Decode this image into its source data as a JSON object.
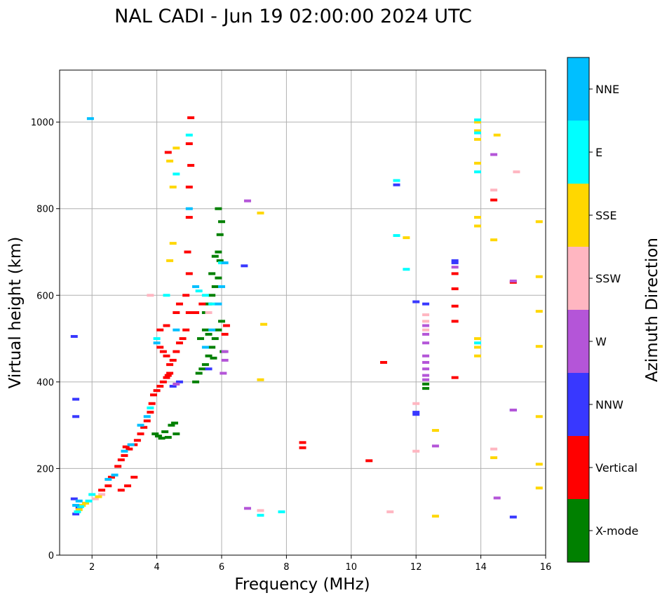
{
  "chart_data": {
    "type": "scatter",
    "title": "NAL CADI - Jun 19 02:00:00 2024 UTC",
    "xlabel": "Frequency (MHz)",
    "ylabel": "Virtual height (km)",
    "xlim": [
      1.0,
      16.0
    ],
    "ylim": [
      0,
      1120
    ],
    "xticks": [
      2,
      4,
      6,
      8,
      10,
      12,
      14,
      16
    ],
    "yticks": [
      0,
      200,
      400,
      600,
      800,
      1000
    ],
    "grid": true,
    "colorbar": {
      "label": "Azimuth Direction",
      "categories": [
        {
          "label": "X-mode",
          "color": "#008000"
        },
        {
          "label": "Vertical",
          "color": "#ff0000"
        },
        {
          "label": "NNW",
          "color": "#3838ff"
        },
        {
          "label": "W",
          "color": "#b455d8"
        },
        {
          "label": "SSW",
          "color": "#ffb6c1"
        },
        {
          "label": "SSE",
          "color": "#ffd700"
        },
        {
          "label": "E",
          "color": "#00ffff"
        },
        {
          "label": "NNE",
          "color": "#00bfff"
        }
      ]
    },
    "series": [
      {
        "name": "X-mode",
        "points": [
          [
            3.95,
            280
          ],
          [
            4.05,
            275
          ],
          [
            4.15,
            270
          ],
          [
            4.25,
            285
          ],
          [
            4.35,
            272
          ],
          [
            4.45,
            300
          ],
          [
            4.55,
            305
          ],
          [
            4.6,
            280
          ],
          [
            5.2,
            400
          ],
          [
            5.3,
            420
          ],
          [
            5.4,
            430
          ],
          [
            5.5,
            440
          ],
          [
            5.6,
            460
          ],
          [
            5.7,
            480
          ],
          [
            5.8,
            500
          ],
          [
            5.9,
            520
          ],
          [
            6.0,
            540
          ],
          [
            5.5,
            560
          ],
          [
            5.6,
            580
          ],
          [
            5.7,
            600
          ],
          [
            5.8,
            620
          ],
          [
            5.9,
            640
          ],
          [
            5.95,
            680
          ],
          [
            5.9,
            700
          ],
          [
            5.95,
            740
          ],
          [
            6.0,
            770
          ],
          [
            5.9,
            800
          ],
          [
            5.7,
            650
          ],
          [
            5.8,
            690
          ],
          [
            5.5,
            520
          ],
          [
            5.35,
            500
          ],
          [
            5.6,
            510
          ],
          [
            5.75,
            455
          ],
          [
            6.05,
            470
          ],
          [
            12.3,
            385
          ],
          [
            12.3,
            395
          ]
        ]
      },
      {
        "name": "Vertical",
        "points": [
          [
            2.3,
            150
          ],
          [
            2.5,
            160
          ],
          [
            2.6,
            180
          ],
          [
            2.8,
            205
          ],
          [
            2.9,
            220
          ],
          [
            3.0,
            230
          ],
          [
            3.05,
            250
          ],
          [
            3.15,
            245
          ],
          [
            3.3,
            255
          ],
          [
            3.4,
            265
          ],
          [
            3.5,
            280
          ],
          [
            3.6,
            295
          ],
          [
            3.7,
            310
          ],
          [
            3.8,
            330
          ],
          [
            3.85,
            350
          ],
          [
            3.9,
            370
          ],
          [
            4.0,
            380
          ],
          [
            4.1,
            390
          ],
          [
            4.2,
            400
          ],
          [
            4.3,
            410
          ],
          [
            4.35,
            415
          ],
          [
            4.4,
            420
          ],
          [
            4.5,
            450
          ],
          [
            4.6,
            470
          ],
          [
            4.7,
            490
          ],
          [
            4.8,
            500
          ],
          [
            4.9,
            520
          ],
          [
            5.0,
            560
          ],
          [
            4.9,
            600
          ],
          [
            5.0,
            650
          ],
          [
            4.95,
            700
          ],
          [
            5.0,
            780
          ],
          [
            5.0,
            850
          ],
          [
            5.05,
            900
          ],
          [
            5.0,
            950
          ],
          [
            5.05,
            1010
          ],
          [
            4.1,
            480
          ],
          [
            4.2,
            470
          ],
          [
            4.3,
            460
          ],
          [
            4.4,
            440
          ],
          [
            4.1,
            520
          ],
          [
            4.3,
            530
          ],
          [
            4.6,
            560
          ],
          [
            4.7,
            580
          ],
          [
            5.2,
            560
          ],
          [
            5.4,
            580
          ],
          [
            6.1,
            510
          ],
          [
            6.15,
            530
          ],
          [
            4.35,
            930
          ],
          [
            2.9,
            150
          ],
          [
            3.1,
            160
          ],
          [
            3.3,
            180
          ],
          [
            13.2,
            410
          ],
          [
            13.2,
            540
          ],
          [
            13.2,
            575
          ],
          [
            13.2,
            615
          ],
          [
            13.2,
            650
          ],
          [
            11.0,
            445
          ],
          [
            8.5,
            260
          ],
          [
            8.5,
            248
          ],
          [
            10.55,
            218
          ],
          [
            14.4,
            820
          ],
          [
            15.0,
            630
          ]
        ]
      },
      {
        "name": "NNW",
        "points": [
          [
            1.5,
            95
          ],
          [
            1.6,
            110
          ],
          [
            1.45,
            130
          ],
          [
            1.5,
            320
          ],
          [
            1.5,
            360
          ],
          [
            1.45,
            505
          ],
          [
            4.5,
            390
          ],
          [
            4.7,
            400
          ],
          [
            5.6,
            430
          ],
          [
            12.0,
            330
          ],
          [
            12.0,
            325
          ],
          [
            12.3,
            580
          ],
          [
            13.2,
            675
          ],
          [
            13.2,
            680
          ],
          [
            15.0,
            88
          ],
          [
            15.0,
            335
          ],
          [
            11.4,
            855
          ],
          [
            6.7,
            668
          ],
          [
            12.0,
            585
          ]
        ]
      },
      {
        "name": "W",
        "points": [
          [
            4.6,
            395
          ],
          [
            6.05,
            420
          ],
          [
            6.1,
            450
          ],
          [
            6.1,
            470
          ],
          [
            12.3,
            405
          ],
          [
            12.3,
            415
          ],
          [
            12.3,
            430
          ],
          [
            12.3,
            445
          ],
          [
            12.3,
            460
          ],
          [
            12.3,
            490
          ],
          [
            12.3,
            510
          ],
          [
            12.3,
            530
          ],
          [
            14.4,
            925
          ],
          [
            14.5,
            132
          ],
          [
            15.0,
            335
          ],
          [
            12.6,
            252
          ],
          [
            6.8,
            108
          ],
          [
            13.2,
            665
          ],
          [
            15.0,
            633
          ],
          [
            6.8,
            818
          ]
        ]
      },
      {
        "name": "SSW",
        "points": [
          [
            2.1,
            130
          ],
          [
            2.3,
            140
          ],
          [
            3.8,
            600
          ],
          [
            5.6,
            560
          ],
          [
            12.3,
            555
          ],
          [
            12.3,
            540
          ],
          [
            12.3,
            520
          ],
          [
            12.0,
            240
          ],
          [
            12.0,
            350
          ],
          [
            11.2,
            100
          ],
          [
            14.4,
            245
          ],
          [
            15.1,
            885
          ],
          [
            14.4,
            843
          ],
          [
            7.2,
            103
          ]
        ]
      },
      {
        "name": "SSE",
        "points": [
          [
            1.6,
            105
          ],
          [
            1.7,
            115
          ],
          [
            1.8,
            120
          ],
          [
            2.2,
            135
          ],
          [
            4.4,
            680
          ],
          [
            4.5,
            720
          ],
          [
            4.6,
            940
          ],
          [
            4.4,
            910
          ],
          [
            4.5,
            850
          ],
          [
            13.9,
            960
          ],
          [
            13.9,
            980
          ],
          [
            13.9,
            1000
          ],
          [
            13.9,
            760
          ],
          [
            13.9,
            780
          ],
          [
            13.9,
            480
          ],
          [
            13.9,
            500
          ],
          [
            13.9,
            460
          ],
          [
            13.9,
            905
          ],
          [
            14.5,
            970
          ],
          [
            14.4,
            728
          ],
          [
            14.4,
            225
          ],
          [
            12.6,
            90
          ],
          [
            12.6,
            288
          ],
          [
            15.8,
            155
          ],
          [
            15.8,
            210
          ],
          [
            15.8,
            320
          ],
          [
            15.8,
            482
          ],
          [
            15.8,
            563
          ],
          [
            15.8,
            643
          ],
          [
            15.8,
            770
          ],
          [
            11.7,
            733
          ],
          [
            7.3,
            533
          ],
          [
            7.2,
            405
          ],
          [
            7.2,
            790
          ]
        ]
      },
      {
        "name": "E",
        "points": [
          [
            1.55,
            100
          ],
          [
            1.65,
            112
          ],
          [
            1.9,
            125
          ],
          [
            2.0,
            140
          ],
          [
            3.8,
            340
          ],
          [
            4.0,
            500
          ],
          [
            4.3,
            600
          ],
          [
            4.6,
            880
          ],
          [
            5.0,
            970
          ],
          [
            5.3,
            610
          ],
          [
            5.5,
            600
          ],
          [
            5.7,
            580
          ],
          [
            6.0,
            675
          ],
          [
            13.9,
            1005
          ],
          [
            13.9,
            975
          ],
          [
            13.9,
            490
          ],
          [
            13.9,
            885
          ],
          [
            11.4,
            865
          ],
          [
            11.7,
            660
          ],
          [
            7.2,
            92
          ],
          [
            7.85,
            100
          ],
          [
            11.4,
            738
          ]
        ]
      },
      {
        "name": "NNE",
        "points": [
          [
            1.5,
            115
          ],
          [
            1.6,
            125
          ],
          [
            2.5,
            175
          ],
          [
            2.7,
            185
          ],
          [
            3.0,
            240
          ],
          [
            3.2,
            255
          ],
          [
            3.5,
            300
          ],
          [
            3.7,
            320
          ],
          [
            4.0,
            490
          ],
          [
            4.6,
            520
          ],
          [
            5.2,
            620
          ],
          [
            5.5,
            480
          ],
          [
            5.7,
            520
          ],
          [
            5.9,
            580
          ],
          [
            6.0,
            620
          ],
          [
            6.1,
            675
          ],
          [
            1.95,
            1008
          ],
          [
            5.0,
            800
          ]
        ]
      }
    ]
  }
}
